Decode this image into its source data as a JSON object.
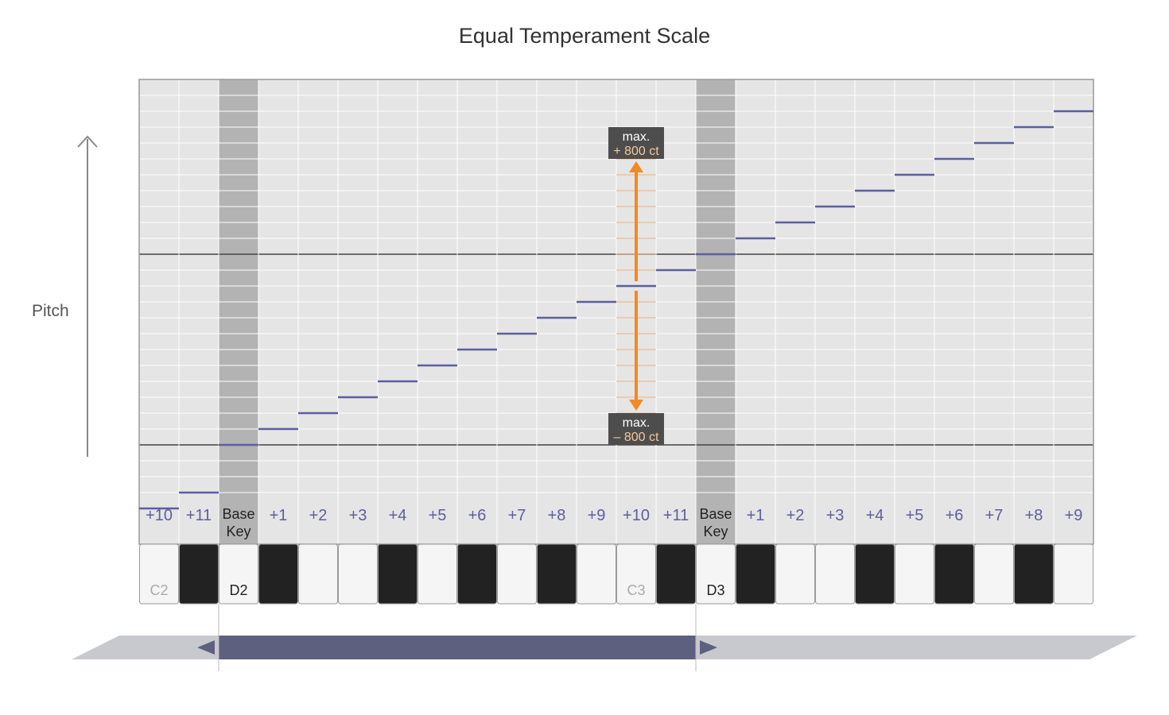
{
  "title": "Equal Temperament Scale",
  "axis": {
    "pitch_label": "Pitch"
  },
  "columns": [
    {
      "interval": "+10",
      "key": "white",
      "note": "C2",
      "base": false
    },
    {
      "interval": "+11",
      "key": "black",
      "note": "",
      "base": false
    },
    {
      "interval": "Base Key",
      "key": "white",
      "note": "D2",
      "base": true
    },
    {
      "interval": "+1",
      "key": "black",
      "note": "",
      "base": false
    },
    {
      "interval": "+2",
      "key": "white",
      "note": "",
      "base": false
    },
    {
      "interval": "+3",
      "key": "white",
      "note": "",
      "base": false
    },
    {
      "interval": "+4",
      "key": "black",
      "note": "",
      "base": false
    },
    {
      "interval": "+5",
      "key": "white",
      "note": "",
      "base": false
    },
    {
      "interval": "+6",
      "key": "black",
      "note": "",
      "base": false
    },
    {
      "interval": "+7",
      "key": "white",
      "note": "",
      "base": false
    },
    {
      "interval": "+8",
      "key": "black",
      "note": "",
      "base": false
    },
    {
      "interval": "+9",
      "key": "white",
      "note": "",
      "base": false
    },
    {
      "interval": "+10",
      "key": "white",
      "note": "C3",
      "base": false
    },
    {
      "interval": "+11",
      "key": "black",
      "note": "",
      "base": false
    },
    {
      "interval": "Base Key",
      "key": "white",
      "note": "D3",
      "base": true
    },
    {
      "interval": "+1",
      "key": "black",
      "note": "",
      "base": false
    },
    {
      "interval": "+2",
      "key": "white",
      "note": "",
      "base": false
    },
    {
      "interval": "+3",
      "key": "white",
      "note": "",
      "base": false
    },
    {
      "interval": "+4",
      "key": "black",
      "note": "",
      "base": false
    },
    {
      "interval": "+5",
      "key": "white",
      "note": "",
      "base": false
    },
    {
      "interval": "+6",
      "key": "black",
      "note": "",
      "base": false
    },
    {
      "interval": "+7",
      "key": "white",
      "note": "",
      "base": false
    },
    {
      "interval": "+8",
      "key": "black",
      "note": "",
      "base": false
    },
    {
      "interval": "+9",
      "key": "white",
      "note": "",
      "base": false
    }
  ],
  "pitch_levels": [
    -4,
    -3,
    0,
    1,
    2,
    3,
    4,
    5,
    6,
    7,
    8,
    9,
    10,
    11,
    12,
    13,
    14,
    15,
    16,
    17,
    18,
    19,
    20,
    21
  ],
  "range_markers": {
    "max_label": "max.",
    "upper": "+ 800 ct",
    "lower": "– 800 ct",
    "column_index": 12
  },
  "colors": {
    "grid_background": "#e5e5e5",
    "base_column": "#b3b3b3",
    "pitch_step": "#5b5f9e",
    "range_arrow": "#f08a24",
    "marker_box": "#4d4d4d",
    "black_key": "#222222",
    "white_key": "#f5f5f5",
    "range_bar": "#5e6080",
    "range_track": "#c8c9ce"
  }
}
